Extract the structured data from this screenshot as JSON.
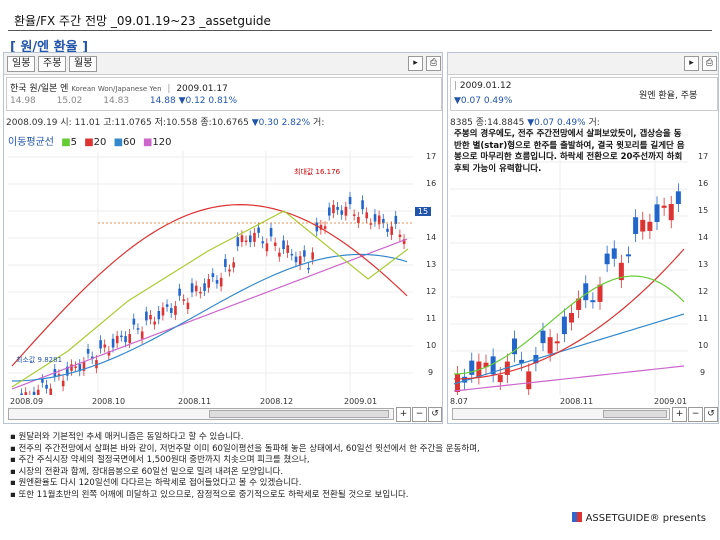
{
  "header": {
    "title": "환율/FX 주간 전망 _09.01.19~23 _assetguide",
    "section": "[ 원/엔 환율 ]"
  },
  "left_panel": {
    "tabs": [
      "일봉",
      "주봉",
      "월봉"
    ],
    "info": {
      "name": "한국 원/일본 엔",
      "name_en": "Korean Won/Japanese Yen",
      "date": "2009.01.17",
      "v1": "14.98",
      "v2": "15.02",
      "v3": "14.83",
      "close": "14.88",
      "change": "▼0.12",
      "pct": "0.81%"
    },
    "ohlc": {
      "date": "2008.09.19",
      "open": "시: 11.01",
      "high": "고:11.0765",
      "low": "저:10.558",
      "close": "종:10.6765",
      "change": "▼0.30",
      "pct": "2.82%",
      "vol": "거:"
    },
    "ma_legend": {
      "label": "이동평균선",
      "items": [
        "5",
        "20",
        "60",
        "120"
      ]
    },
    "y_labels": [
      "17",
      "16",
      "15",
      "14",
      "13",
      "12",
      "11",
      "10",
      "9"
    ],
    "current_price": "15",
    "x_labels": [
      "2008.09",
      "2008.10",
      "2008.11",
      "2008.12",
      "2009.01"
    ],
    "annotations": {
      "max": "최대값 16.176",
      "min": "최소값 9.8281"
    }
  },
  "right_panel": {
    "info": {
      "date": "2009.01.12",
      "change": "▼0.07",
      "pct": "0.49%",
      "caption": "원엔 환율, 주봉"
    },
    "ohlc": {
      "date": "8385",
      "close": "종:14.8845",
      "change": "▼0.07",
      "pct": "0.49%",
      "vol": "거:"
    },
    "y_labels": [
      "17",
      "16",
      "15",
      "14",
      "13",
      "12",
      "11",
      "10",
      "9"
    ],
    "x_labels": [
      "8.07",
      "2008.11",
      "2009.01"
    ],
    "note": "주봉의 경우에도, 전주 주간전망에서 살펴보았듯이, 갭상승을 동반한 별(star)형으로 한주를 출발하여, 결국 윗꼬리를 길게단 음봉으로 마무리한 흐름입니다. 하락세 전환으로 20주선까지 하회후퇴 가능이 유력합니다."
  },
  "bullets": [
    "원달러와 기본적인 추세 매커니즘은 동일하다고 할 수 있습니다.",
    "전주의 주간전망에서 살펴본 바와 같이, 저번주말 이미 60일이평선을 돌파해 놓은 상태에서, 60일선 윗선에서 한 주간을 운동하며,",
    "주간 주식시장 약세의 절정국면에서 1,500원대 중반까지 치솟으며 피크를 쳤으나,",
    "시장의 전환과 함께, 장대음봉으로 60일선 밑으로 밀려 내려온 모양입니다.",
    "원엔환율도 다시 120일선에 다다르는 하락세로 접어들었다고 볼 수 있겠습니다.",
    "또한 11월초반의 왼쪽 어깨에 미달하고 있으므로, 잠정적으로 중기적으로도 하락세로 전환될 것으로 보입니다."
  ],
  "footer": {
    "brand": "ASSETGUIDE® presents"
  },
  "colors": {
    "up": "#dd3333",
    "down": "#2266cc",
    "ma5": "#66cc33",
    "ma20": "#dd3333",
    "ma60": "#3388cc",
    "ma120": "#cc66cc",
    "accent": "#2255aa"
  }
}
